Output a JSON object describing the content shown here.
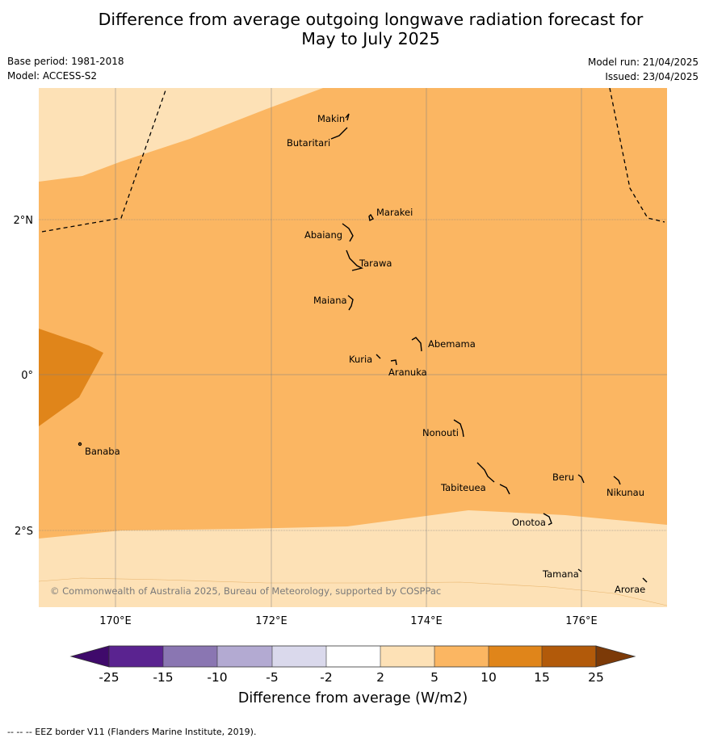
{
  "title_line1": "Difference from average outgoing longwave radiation forecast for",
  "title_line2": "May to July 2025",
  "base_period": "Base period: 1981-2018",
  "model": "Model: ACCESS-S2",
  "model_run": "Model run: 21/04/2025",
  "issued": "Issued: 23/04/2025",
  "copyright": "© Commonwealth of Australia 2025, Bureau of Meteorology, supported by COSPPac",
  "footer": "--  --  -- EEZ border V11 (Flanders Marine Institute, 2019).",
  "map": {
    "lon_ticks": [
      "170°E",
      "172°E",
      "174°E",
      "176°E"
    ],
    "lat_ticks": [
      "2°N",
      "0°",
      "2°S"
    ],
    "islands": [
      "Makin",
      "Butaritari",
      "Marakei",
      "Abaiang",
      "Tarawa",
      "Maiana",
      "Abemama",
      "Kuria",
      "Aranuka",
      "Nonouti",
      "Banaba",
      "Tabiteuea",
      "Beru",
      "Nikunau",
      "Onotoa",
      "Tamana",
      "Arorae"
    ],
    "colors": {
      "light": "#fde1b6",
      "mid": "#fbb662",
      "dark": "#e0851a",
      "grid": "#7f7f7f"
    }
  },
  "colorbar": {
    "label": "Difference from average (W/m2)",
    "ticks": [
      "-25",
      "-15",
      "-10",
      "-5",
      "-2",
      "2",
      "5",
      "10",
      "15",
      "25"
    ],
    "colors": [
      "#3f0a6b",
      "#5a2390",
      "#8a76b2",
      "#b3aad2",
      "#dad9ec",
      "#ffffff",
      "#fde1b6",
      "#fbb662",
      "#e0851a",
      "#b25a0a",
      "#7c3a08"
    ]
  }
}
